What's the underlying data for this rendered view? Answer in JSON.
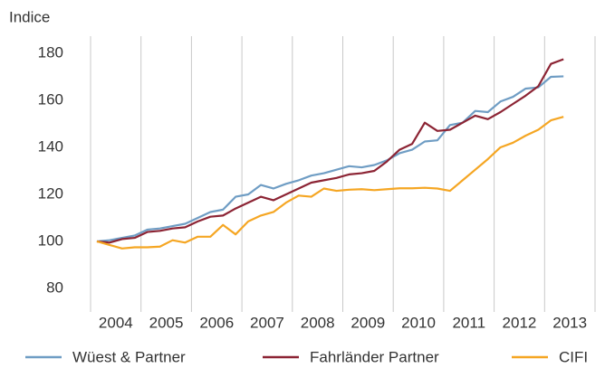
{
  "chart_data": {
    "type": "line",
    "y_label": "Indice",
    "x": [
      2004.125,
      2004.375,
      2004.625,
      2004.875,
      2005.125,
      2005.375,
      2005.625,
      2005.875,
      2006.125,
      2006.375,
      2006.625,
      2006.875,
      2007.125,
      2007.375,
      2007.625,
      2007.875,
      2008.125,
      2008.375,
      2008.625,
      2008.875,
      2009.125,
      2009.375,
      2009.625,
      2009.875,
      2010.125,
      2010.375,
      2010.625,
      2010.875,
      2011.125,
      2011.375,
      2011.625,
      2011.875,
      2012.125,
      2012.375,
      2012.625,
      2012.875,
      2013.125,
      2013.375
    ],
    "series": [
      {
        "name": "Wüest & Partner",
        "color": "#6f9dc4",
        "values": [
          100,
          100.5,
          101.5,
          102.5,
          105,
          105.5,
          106.5,
          107.5,
          110,
          112.5,
          113.5,
          119,
          120,
          124,
          122.5,
          124.5,
          126,
          128,
          129,
          130.5,
          132,
          131.5,
          132.5,
          134.5,
          137.5,
          139,
          142.5,
          143,
          149.5,
          150.5,
          155.5,
          155,
          159.5,
          161.5,
          165,
          165.5,
          170,
          170.2
        ]
      },
      {
        "name": "Fahrländer Partner",
        "color": "#8c2434",
        "values": [
          100,
          99.5,
          101,
          101.5,
          104,
          104.5,
          105.5,
          106,
          108.5,
          110.5,
          111,
          114,
          116.5,
          119,
          117.5,
          120,
          122.5,
          125,
          126,
          127,
          128.5,
          129,
          130,
          134,
          139,
          141.5,
          150.5,
          147,
          147.5,
          150.5,
          153.5,
          152,
          155,
          158.5,
          162,
          166,
          175.5,
          177.5
        ]
      },
      {
        "name": "CIFI",
        "color": "#f5a623",
        "values": [
          100,
          98.5,
          97,
          97.5,
          97.5,
          97.8,
          100.5,
          99.5,
          102,
          102,
          107,
          103,
          108.5,
          111,
          112.5,
          116.5,
          119.5,
          119,
          122.5,
          121.5,
          122,
          122.2,
          121.8,
          122.2,
          122.6,
          122.6,
          122.8,
          122.5,
          121.5,
          126,
          130.5,
          135,
          140,
          142,
          145,
          147.5,
          151.5,
          153
        ]
      }
    ],
    "xlim": [
      2004,
      2014
    ],
    "xgrid": [
      2004,
      2005,
      2006,
      2007,
      2008,
      2009,
      2010,
      2011,
      2012,
      2013,
      2014
    ],
    "xticks": [
      {
        "value": 2004.5,
        "label": "2004"
      },
      {
        "value": 2005.5,
        "label": "2005"
      },
      {
        "value": 2006.5,
        "label": "2006"
      },
      {
        "value": 2007.5,
        "label": "2007"
      },
      {
        "value": 2008.5,
        "label": "2008"
      },
      {
        "value": 2009.5,
        "label": "2009"
      },
      {
        "value": 2010.5,
        "label": "2010"
      },
      {
        "value": 2011.5,
        "label": "2011"
      },
      {
        "value": 2012.5,
        "label": "2012"
      },
      {
        "value": 2013.5,
        "label": "2013"
      }
    ],
    "ylim": [
      70,
      187.3
    ],
    "yticks": [
      80,
      100,
      120,
      140,
      160,
      180
    ],
    "grid": true
  }
}
